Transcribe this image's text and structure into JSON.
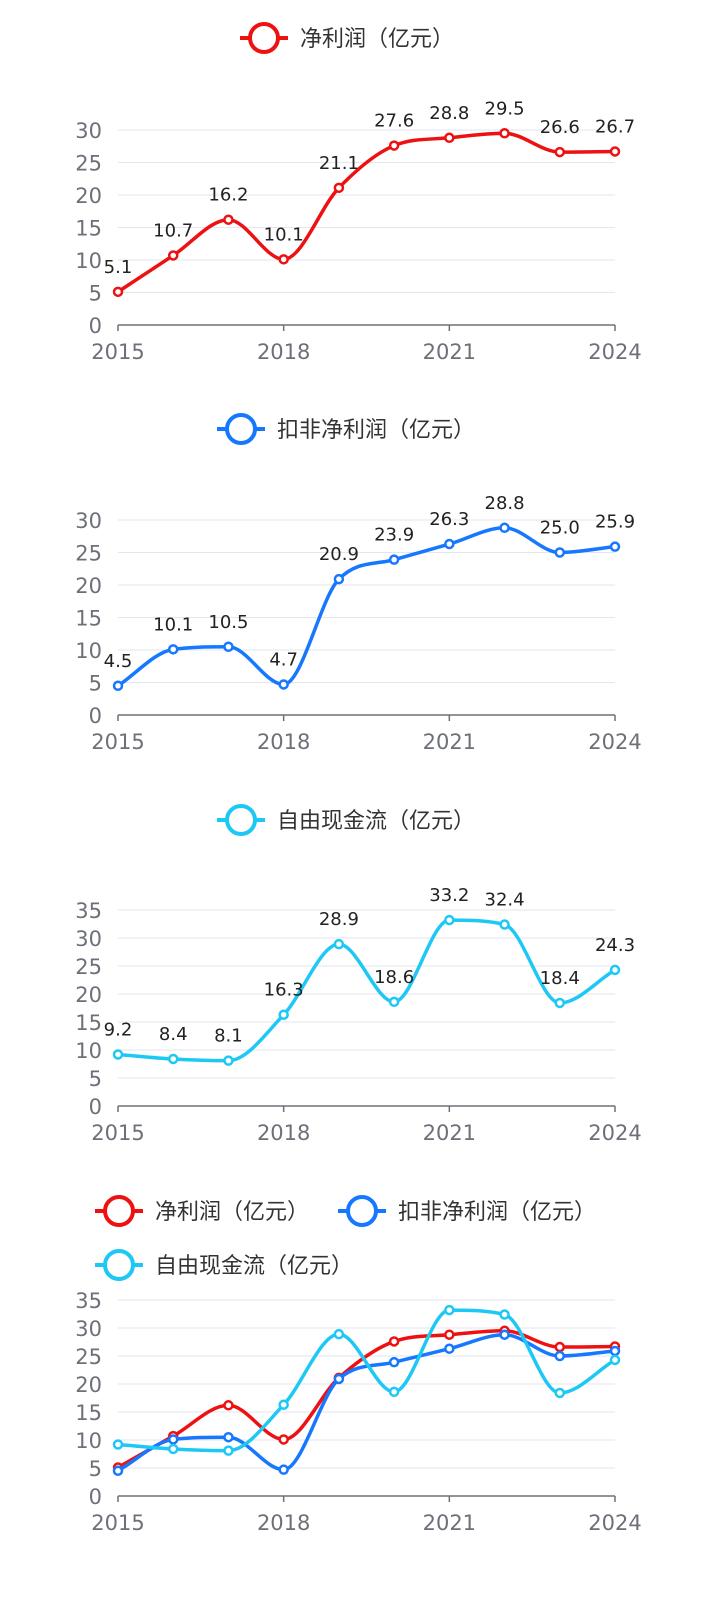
{
  "colors": {
    "net_profit": "#ee1111",
    "deducted": "#1677ff",
    "fcf": "#1ec8f5",
    "grid": "#e1e6f0",
    "axis": "#6e7079",
    "label": "#222222",
    "tick": "#6e7079"
  },
  "chart_data": [
    {
      "type": "line",
      "title": "",
      "legend": [
        "净利润（亿元）"
      ],
      "x": [
        "2015",
        "2016",
        "2017",
        "2018",
        "2019",
        "2020",
        "2021",
        "2022",
        "2023",
        "2024"
      ],
      "x_tick_labels": [
        "2015",
        "2018",
        "2021",
        "2024"
      ],
      "ylim": [
        0,
        30
      ],
      "y_tick_labels": [
        "0",
        "5",
        "10",
        "15",
        "20",
        "25",
        "30"
      ],
      "series": [
        {
          "name": "净利润（亿元）",
          "color_key": "net_profit",
          "values": [
            5.1,
            10.7,
            16.2,
            10.1,
            21.1,
            27.6,
            28.8,
            29.5,
            26.6,
            26.7
          ],
          "labels": [
            "5.1",
            "10.7",
            "16.2",
            "10.1",
            "21.1",
            "27.6",
            "28.8",
            "29.5",
            "26.6",
            "26.7"
          ]
        }
      ]
    },
    {
      "type": "line",
      "title": "",
      "legend": [
        "扣非净利润（亿元）"
      ],
      "x": [
        "2015",
        "2016",
        "2017",
        "2018",
        "2019",
        "2020",
        "2021",
        "2022",
        "2023",
        "2024"
      ],
      "x_tick_labels": [
        "2015",
        "2018",
        "2021",
        "2024"
      ],
      "ylim": [
        0,
        30
      ],
      "y_tick_labels": [
        "0",
        "5",
        "10",
        "15",
        "20",
        "25",
        "30"
      ],
      "series": [
        {
          "name": "扣非净利润（亿元）",
          "color_key": "deducted",
          "values": [
            4.5,
            10.1,
            10.5,
            4.7,
            20.9,
            23.9,
            26.3,
            28.8,
            25.0,
            25.9
          ],
          "labels": [
            "4.5",
            "10.1",
            "10.5",
            "4.7",
            "20.9",
            "23.9",
            "26.3",
            "28.8",
            "25.0",
            "25.9"
          ]
        }
      ]
    },
    {
      "type": "line",
      "title": "",
      "legend": [
        "自由现金流（亿元）"
      ],
      "x": [
        "2015",
        "2016",
        "2017",
        "2018",
        "2019",
        "2020",
        "2021",
        "2022",
        "2023",
        "2024"
      ],
      "x_tick_labels": [
        "2015",
        "2018",
        "2021",
        "2024"
      ],
      "ylim": [
        0,
        35
      ],
      "y_tick_labels": [
        "0",
        "5",
        "10",
        "15",
        "20",
        "25",
        "30",
        "35"
      ],
      "series": [
        {
          "name": "自由现金流（亿元）",
          "color_key": "fcf",
          "values": [
            9.2,
            8.4,
            8.1,
            16.3,
            28.9,
            18.6,
            33.2,
            32.4,
            18.4,
            24.3
          ],
          "labels": [
            "9.2",
            "8.4",
            "8.1",
            "16.3",
            "28.9",
            "18.6",
            "33.2",
            "32.4",
            "18.4",
            "24.3"
          ]
        }
      ]
    },
    {
      "type": "line",
      "title": "",
      "legend": [
        "净利润（亿元）",
        "扣非净利润（亿元）",
        "自由现金流（亿元）"
      ],
      "x": [
        "2015",
        "2016",
        "2017",
        "2018",
        "2019",
        "2020",
        "2021",
        "2022",
        "2023",
        "2024"
      ],
      "x_tick_labels": [
        "2015",
        "2018",
        "2021",
        "2024"
      ],
      "ylim": [
        0,
        35
      ],
      "y_tick_labels": [
        "0",
        "5",
        "10",
        "15",
        "20",
        "25",
        "30",
        "35"
      ],
      "series": [
        {
          "name": "净利润（亿元）",
          "color_key": "net_profit",
          "values": [
            5.1,
            10.7,
            16.2,
            10.1,
            21.1,
            27.6,
            28.8,
            29.5,
            26.6,
            26.7
          ]
        },
        {
          "name": "扣非净利润（亿元）",
          "color_key": "deducted",
          "values": [
            4.5,
            10.1,
            10.5,
            4.7,
            20.9,
            23.9,
            26.3,
            28.8,
            25.0,
            25.9
          ]
        },
        {
          "name": "自由现金流（亿元）",
          "color_key": "fcf",
          "values": [
            9.2,
            8.4,
            8.1,
            16.3,
            28.9,
            18.6,
            33.2,
            32.4,
            18.4,
            24.3
          ]
        }
      ]
    }
  ]
}
